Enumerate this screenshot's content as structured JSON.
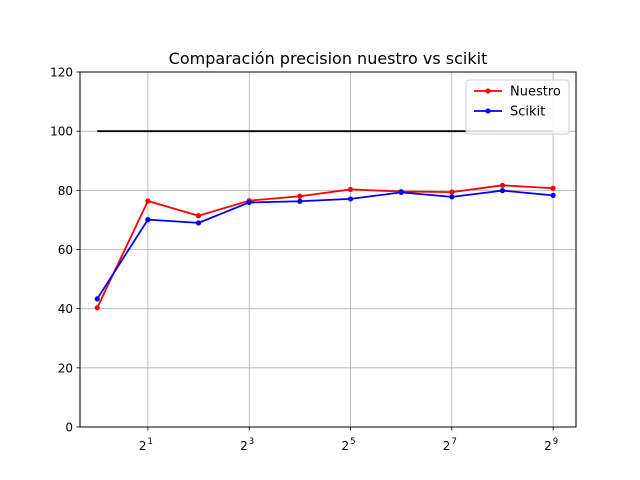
{
  "chart_data": {
    "type": "line",
    "title": "Comparación precision nuestro vs scikit",
    "xlabel": "",
    "ylabel": "",
    "x_scale": "log2",
    "x": [
      1,
      2,
      4,
      8,
      16,
      32,
      64,
      128,
      256,
      512
    ],
    "xlim": [
      0.79,
      700
    ],
    "xticks": [
      {
        "value": 2,
        "base": "2",
        "exp": "1"
      },
      {
        "value": 8,
        "base": "2",
        "exp": "3"
      },
      {
        "value": 32,
        "base": "2",
        "exp": "5"
      },
      {
        "value": 128,
        "base": "2",
        "exp": "7"
      },
      {
        "value": 512,
        "base": "2",
        "exp": "9"
      }
    ],
    "ylim": [
      0,
      120
    ],
    "yticks": [
      0,
      20,
      40,
      60,
      80,
      100,
      120
    ],
    "grid": true,
    "legend_position": "top-right",
    "series": [
      {
        "name": "Nuestro",
        "color": "#ff0000",
        "marker": "point",
        "values": [
          40.3,
          76.4,
          71.4,
          76.5,
          78.0,
          80.3,
          79.6,
          79.4,
          81.7,
          80.7
        ]
      },
      {
        "name": "Scikit",
        "color": "#0000ff",
        "marker": "point",
        "values": [
          43.3,
          70.1,
          69.0,
          75.9,
          76.3,
          77.1,
          79.3,
          77.8,
          79.9,
          78.3
        ]
      },
      {
        "color": "#000000",
        "marker": "none",
        "values": [
          100,
          100,
          100,
          100,
          100,
          100,
          100,
          100,
          100,
          100
        ]
      }
    ]
  }
}
